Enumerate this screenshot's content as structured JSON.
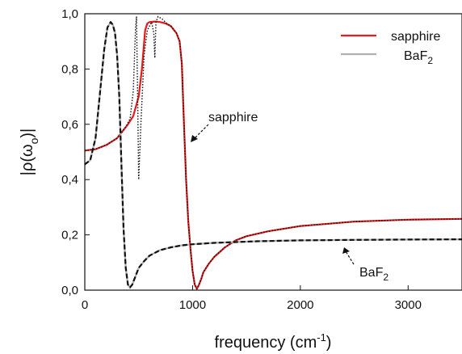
{
  "chart_data": {
    "type": "line",
    "title": "",
    "xlabel": "frequency (cm",
    "xlabel_sup": "-1",
    "xlabel_end": ")",
    "ylabel": "|ρ(ω",
    "ylabel_sub": "o",
    "ylabel_end": ")|",
    "xlim": [
      0,
      3500
    ],
    "ylim": [
      0,
      1.0
    ],
    "xticks": [
      0,
      1000,
      2000,
      3000
    ],
    "xtick_labels": [
      "0",
      "1000",
      "2000",
      "3000"
    ],
    "yticks": [
      0,
      0.2,
      0.4,
      0.6,
      0.8,
      1.0
    ],
    "ytick_labels": [
      "0,0",
      "0,2",
      "0,4",
      "0,6",
      "0,8",
      "1,0"
    ],
    "grid": false,
    "legend_position": "top-right",
    "legend": [
      {
        "label": "sapphire",
        "color": "#e41a1c"
      },
      {
        "label": "BaF",
        "sub": "2",
        "color": "#b0b0b0"
      }
    ],
    "annotations": [
      {
        "text": "sapphire",
        "sub": "",
        "target": [
          990,
          0.52
        ]
      },
      {
        "text": "BaF",
        "sub": "2",
        "target": [
          2400,
          0.17
        ]
      }
    ],
    "series": [
      {
        "name": "sapphire",
        "style": "solid",
        "color": "#e41a1c",
        "x": [
          0,
          100,
          200,
          300,
          400,
          450,
          500,
          530,
          560,
          580,
          600,
          650,
          700,
          750,
          800,
          850,
          880,
          900,
          920,
          940,
          960,
          980,
          1000,
          1020,
          1040,
          1060,
          1080,
          1100,
          1150,
          1200,
          1300,
          1400,
          1500,
          1700,
          2000,
          2500,
          3000,
          3500
        ],
        "y": [
          0.505,
          0.51,
          0.525,
          0.55,
          0.6,
          0.63,
          0.7,
          0.8,
          0.94,
          0.965,
          0.97,
          0.972,
          0.97,
          0.965,
          0.955,
          0.93,
          0.9,
          0.82,
          0.6,
          0.4,
          0.25,
          0.15,
          0.07,
          0.02,
          0.005,
          0.02,
          0.04,
          0.065,
          0.095,
          0.12,
          0.155,
          0.18,
          0.195,
          0.213,
          0.232,
          0.248,
          0.255,
          0.258
        ]
      },
      {
        "name": "sapphire-model",
        "style": "dotted",
        "color": "#111111",
        "x": [
          0,
          100,
          200,
          300,
          380,
          420,
          450,
          470,
          480,
          490,
          500,
          520,
          550,
          580,
          620,
          640,
          650,
          660,
          680,
          720,
          760,
          800,
          850,
          880,
          900,
          920,
          940,
          960,
          980,
          1000,
          1020,
          1040,
          1060,
          1080,
          1100,
          1150,
          1200,
          1300,
          1400,
          1500,
          1700,
          2000,
          2500,
          3000,
          3500
        ],
        "y": [
          0.505,
          0.51,
          0.525,
          0.55,
          0.59,
          0.62,
          0.72,
          0.94,
          0.99,
          0.7,
          0.4,
          0.6,
          0.85,
          0.94,
          0.97,
          0.93,
          0.84,
          0.97,
          0.99,
          0.98,
          0.965,
          0.955,
          0.93,
          0.9,
          0.82,
          0.6,
          0.4,
          0.25,
          0.15,
          0.07,
          0.02,
          0.005,
          0.02,
          0.04,
          0.065,
          0.095,
          0.12,
          0.155,
          0.18,
          0.195,
          0.213,
          0.232,
          0.248,
          0.255,
          0.258
        ]
      },
      {
        "name": "BaF2",
        "style": "solid",
        "color": "#b0b0b0",
        "x": [
          0,
          50,
          100,
          150,
          180,
          210,
          240,
          260,
          280,
          300,
          320,
          340,
          360,
          380,
          400,
          420,
          440,
          460,
          480,
          500,
          550,
          600,
          700,
          800,
          900,
          1000,
          1200,
          1400,
          1600,
          2000,
          2500,
          3000,
          3500
        ],
        "y": [
          0.455,
          0.47,
          0.55,
          0.75,
          0.87,
          0.95,
          0.97,
          0.96,
          0.93,
          0.85,
          0.7,
          0.45,
          0.22,
          0.08,
          0.02,
          0.01,
          0.02,
          0.04,
          0.06,
          0.08,
          0.105,
          0.125,
          0.145,
          0.155,
          0.162,
          0.166,
          0.171,
          0.174,
          0.177,
          0.18,
          0.182,
          0.183,
          0.184
        ]
      },
      {
        "name": "BaF2-model",
        "style": "dashed",
        "color": "#111111",
        "x": [
          0,
          50,
          100,
          150,
          180,
          210,
          240,
          260,
          280,
          300,
          320,
          340,
          360,
          380,
          400,
          420,
          440,
          460,
          480,
          500,
          550,
          600,
          700,
          800,
          900,
          1000,
          1200,
          1400,
          1600,
          2000,
          2500,
          3000,
          3500
        ],
        "y": [
          0.455,
          0.47,
          0.55,
          0.75,
          0.87,
          0.95,
          0.97,
          0.96,
          0.93,
          0.85,
          0.7,
          0.45,
          0.22,
          0.08,
          0.02,
          0.01,
          0.02,
          0.04,
          0.06,
          0.08,
          0.105,
          0.125,
          0.145,
          0.155,
          0.162,
          0.166,
          0.171,
          0.174,
          0.177,
          0.18,
          0.182,
          0.183,
          0.184
        ]
      }
    ]
  }
}
